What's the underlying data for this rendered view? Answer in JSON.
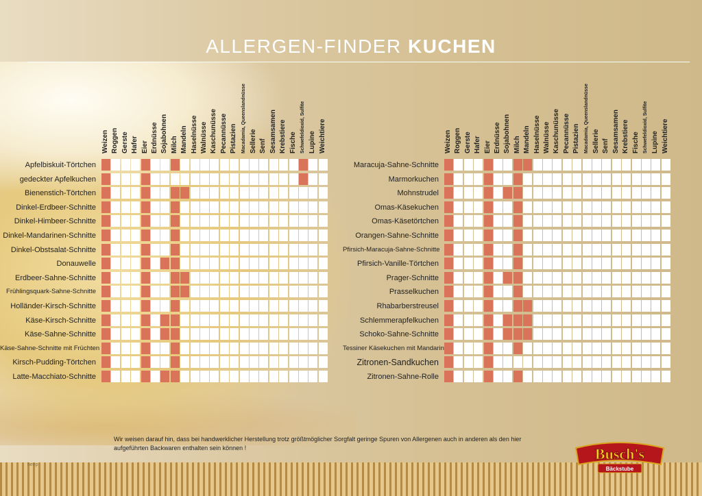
{
  "title": {
    "light": "ALLERGEN-FINDER",
    "bold": "KUCHEN"
  },
  "allergens": [
    {
      "label": "Weizen"
    },
    {
      "label": "Roggen"
    },
    {
      "label": "Gerste"
    },
    {
      "label": "Hafer"
    },
    {
      "label": "Eier"
    },
    {
      "label": "Erdnüsse"
    },
    {
      "label": "Sojabohnen"
    },
    {
      "label": "Milch"
    },
    {
      "label": "Mandeln"
    },
    {
      "label": "Haselnüsse"
    },
    {
      "label": "Walnüsse"
    },
    {
      "label": "Kaschunüsse"
    },
    {
      "label": "Pecannüsse"
    },
    {
      "label": "Pistazien"
    },
    {
      "label": "Macadamia, Queenslandnüsse",
      "tiny": true
    },
    {
      "label": "Sellerie"
    },
    {
      "label": "Senf"
    },
    {
      "label": "Sesamsamen"
    },
    {
      "label": "Krebstiere"
    },
    {
      "label": "Fische"
    },
    {
      "label": "Schwefeldioxid, Sulfite",
      "tiny": true
    },
    {
      "label": "Lupine"
    },
    {
      "label": "Weichtiere"
    }
  ],
  "left_products": [
    {
      "name": "Apfelbiskuit-Törtchen",
      "allergens": [
        0,
        4,
        7,
        20
      ]
    },
    {
      "name": "gedeckter Apfelkuchen",
      "allergens": [
        0,
        4,
        20
      ]
    },
    {
      "name": "Bienenstich-Törtchen",
      "allergens": [
        0,
        4,
        7,
        8
      ]
    },
    {
      "name": "Dinkel-Erdbeer-Schnitte",
      "allergens": [
        0,
        4,
        7
      ]
    },
    {
      "name": "Dinkel-Himbeer-Schnitte",
      "allergens": [
        0,
        4,
        7
      ]
    },
    {
      "name": "Dinkel-Mandarinen-Schnitte",
      "allergens": [
        0,
        4,
        7
      ]
    },
    {
      "name": "Dinkel-Obstsalat-Schnitte",
      "allergens": [
        0,
        4,
        7
      ]
    },
    {
      "name": "Donauwelle",
      "allergens": [
        0,
        4,
        6,
        7
      ]
    },
    {
      "name": "Erdbeer-Sahne-Schnitte",
      "allergens": [
        0,
        4,
        7,
        8
      ]
    },
    {
      "name": "Frühlingsquark-Sahne-Schnitte",
      "allergens": [
        0,
        4,
        7,
        8
      ],
      "size": "small"
    },
    {
      "name": "Holländer-Kirsch-Schnitte",
      "allergens": [
        0,
        4,
        7
      ]
    },
    {
      "name": "Käse-Kirsch-Schnitte",
      "allergens": [
        0,
        4,
        6,
        7
      ]
    },
    {
      "name": "Käse-Sahne-Schnitte",
      "allergens": [
        0,
        4,
        6,
        7
      ]
    },
    {
      "name": "Käse-Sahne-Schnitte mit Früchten",
      "allergens": [
        0,
        4,
        7
      ],
      "size": "small"
    },
    {
      "name": "Kirsch-Pudding-Törtchen",
      "allergens": [
        0,
        4,
        7
      ]
    },
    {
      "name": "Latte-Macchiato-Schnitte",
      "allergens": [
        0,
        4,
        6,
        7
      ]
    }
  ],
  "right_products": [
    {
      "name": "Maracuja-Sahne-Schnitte",
      "allergens": [
        0,
        4,
        7,
        8
      ]
    },
    {
      "name": "Marmorkuchen",
      "allergens": [
        0,
        4,
        7
      ]
    },
    {
      "name": "Mohnstrudel",
      "allergens": [
        0,
        4,
        6,
        7
      ]
    },
    {
      "name": "Omas-Käsekuchen",
      "allergens": [
        0,
        4,
        7
      ]
    },
    {
      "name": "Omas-Käsetörtchen",
      "allergens": [
        0,
        4,
        7
      ]
    },
    {
      "name": "Orangen-Sahne-Schnitte",
      "allergens": [
        0,
        4,
        7
      ]
    },
    {
      "name": "Pfirsich-Maracuja-Sahne-Schnitte",
      "allergens": [
        0,
        4,
        7
      ],
      "size": "small"
    },
    {
      "name": "Pfirsich-Vanille-Törtchen",
      "allergens": [
        0,
        4,
        7
      ]
    },
    {
      "name": "Prager-Schnitte",
      "allergens": [
        0,
        4,
        6,
        7
      ]
    },
    {
      "name": "Prasselkuchen",
      "allergens": [
        0,
        4,
        7
      ]
    },
    {
      "name": "Rhabarberstreusel",
      "allergens": [
        0,
        4,
        7,
        8
      ]
    },
    {
      "name": "Schlemmerapfelkuchen",
      "allergens": [
        0,
        4,
        6,
        7,
        8
      ]
    },
    {
      "name": "Schoko-Sahne-Schnitte",
      "allergens": [
        0,
        4,
        6,
        7,
        8
      ]
    },
    {
      "name": "Tessiner Käsekuchen mit Mandarine",
      "allergens": [
        0,
        4,
        7
      ],
      "size": "small"
    },
    {
      "name": "Zitronen-Sandkuchen",
      "allergens": [
        0,
        4
      ],
      "size": "big"
    },
    {
      "name": "Zitronen-Sahne-Rolle",
      "allergens": [
        0,
        4,
        7
      ]
    }
  ],
  "note": "Wir weisen darauf hin, dass bei handwerklicher Herstellung trotz größtmöglicher Sorgfalt geringe Spuren von Allergenen auch in anderen als den hier aufgeführten Backwaren enthalten sein können !",
  "footer_caption": "heep",
  "logo": {
    "name": "Busch's",
    "subtitle": "Bäckstube",
    "colors": {
      "red": "#b5161b",
      "yellow": "#f6d21c",
      "gold": "#d9a520"
    }
  },
  "colors": {
    "marked": "#d9735a",
    "empty": "#ffffff"
  }
}
